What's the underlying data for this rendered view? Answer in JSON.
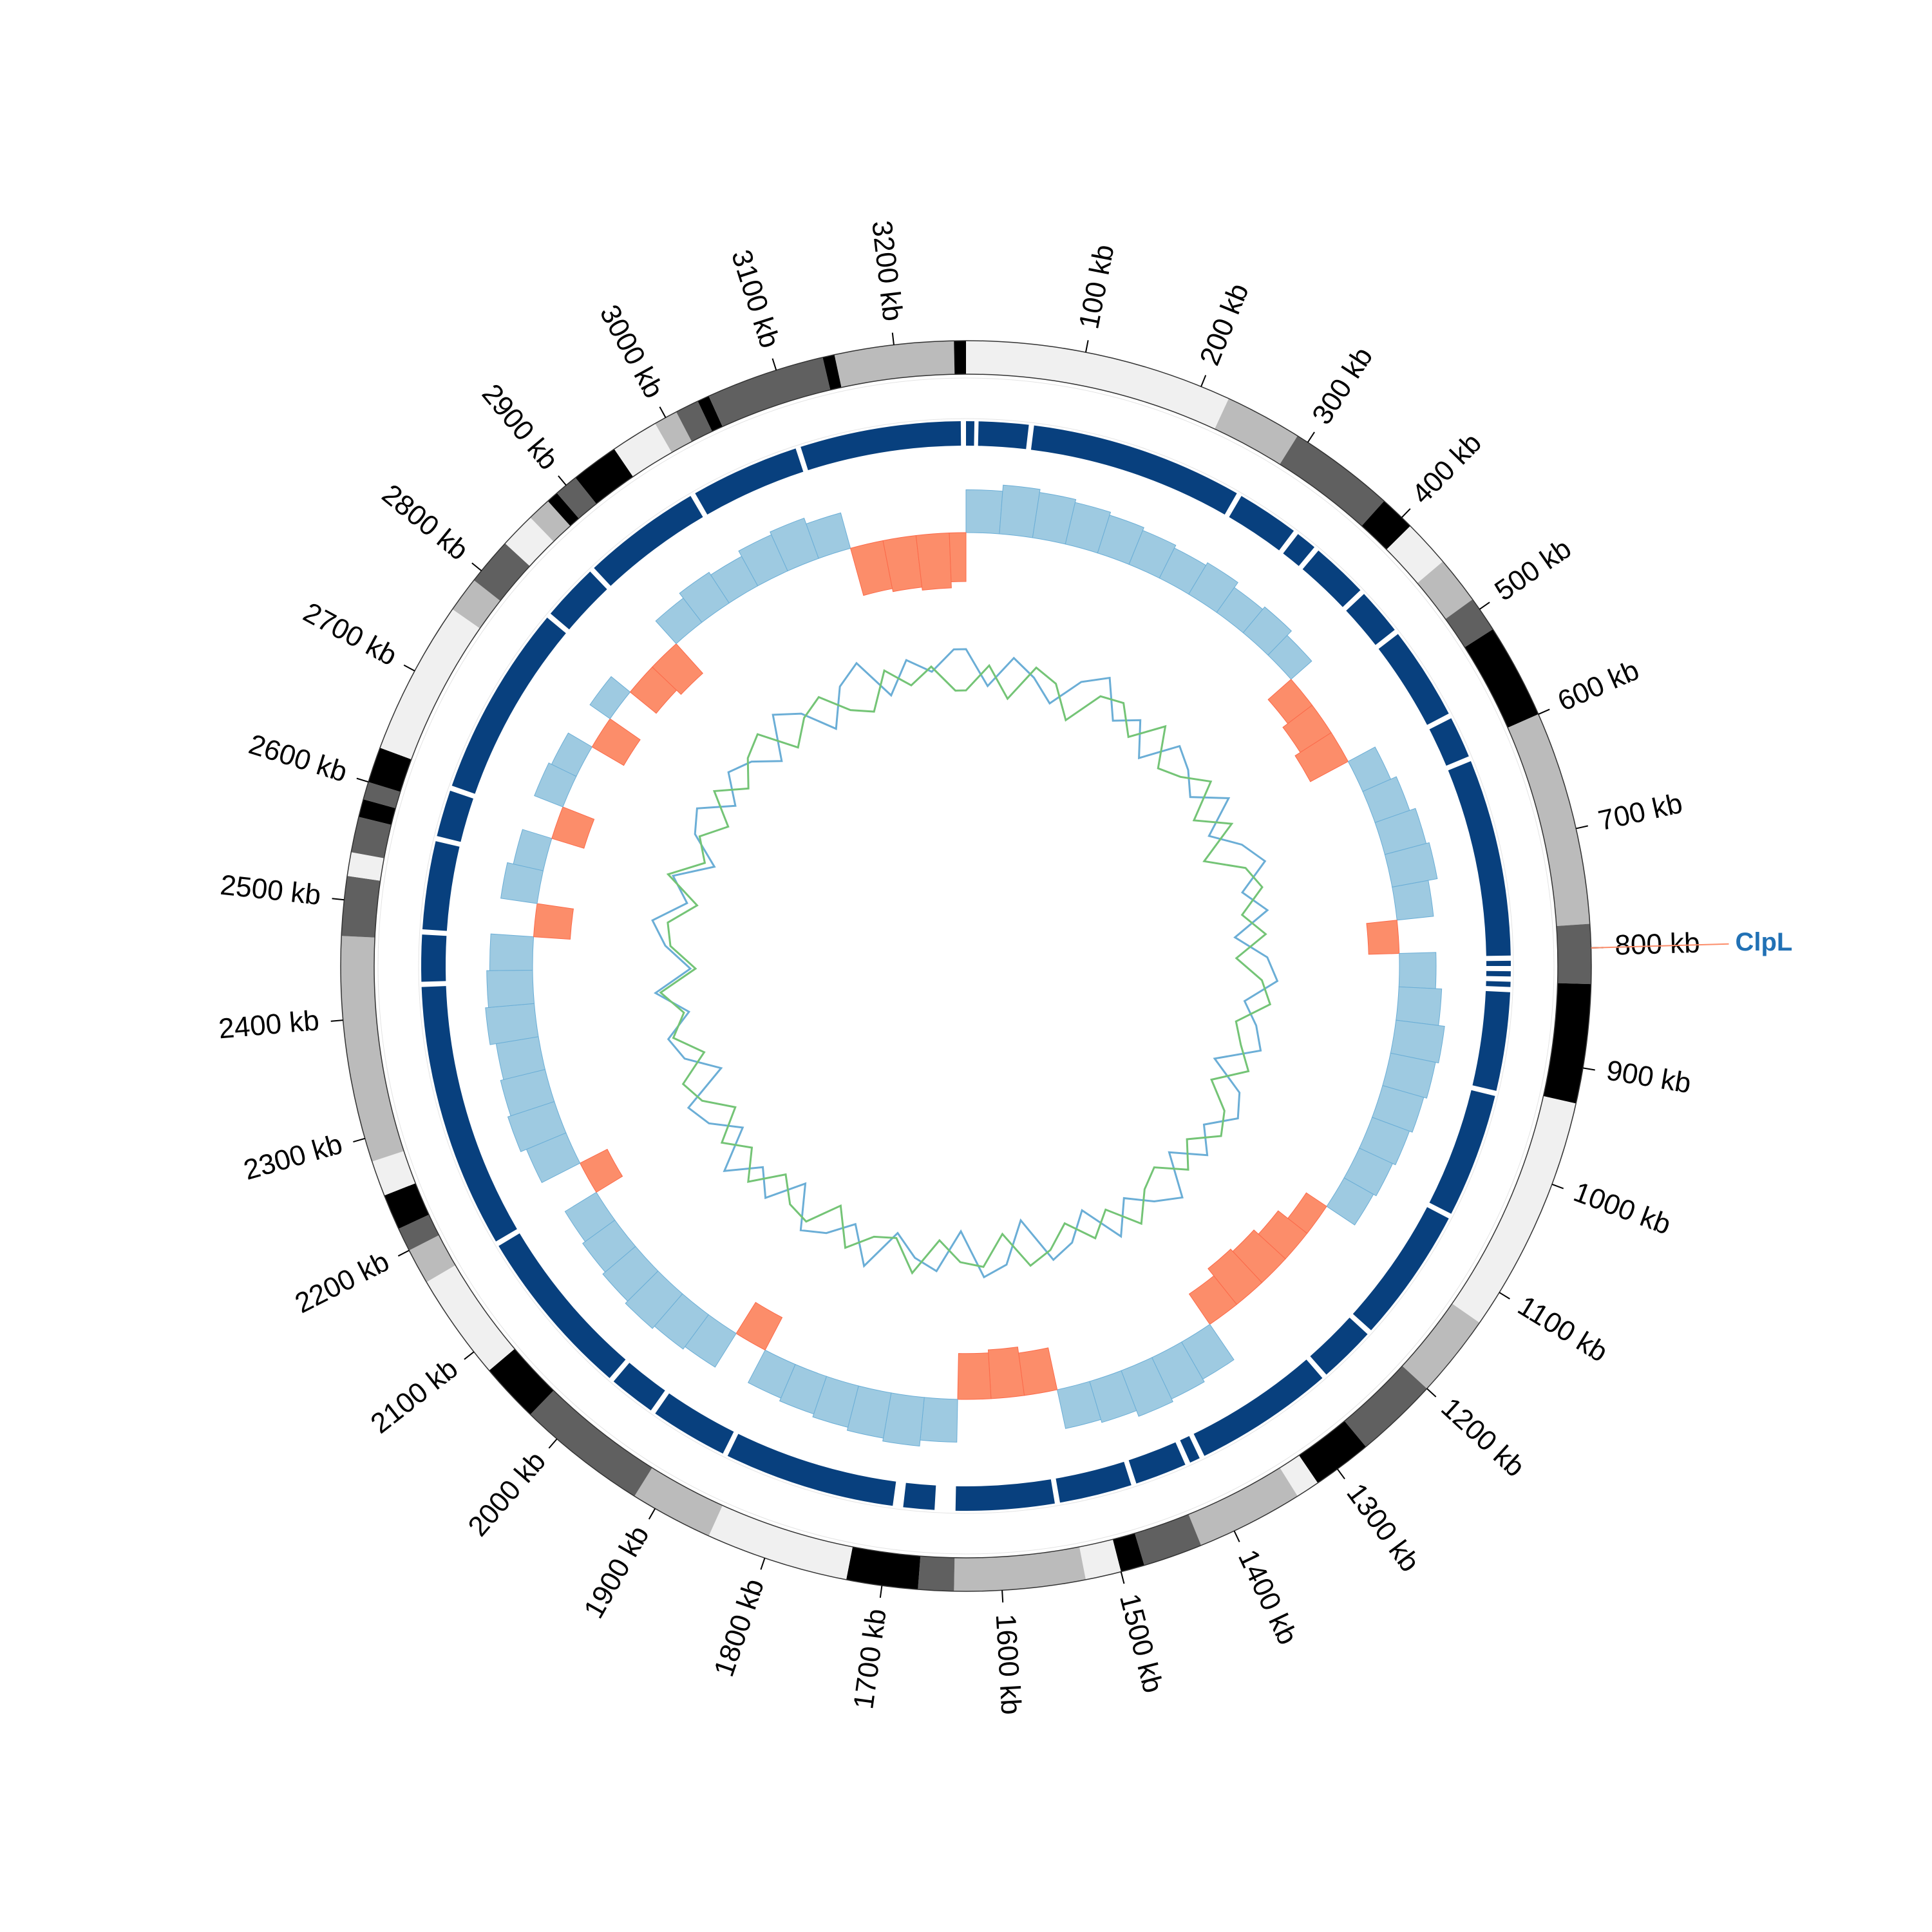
{
  "chart_data": {
    "type": "circos",
    "xlim": [
      0,
      3260
    ],
    "xticks": [
      {
        "value": 100,
        "label": "100 kb"
      },
      {
        "value": 200,
        "label": "200 kb"
      },
      {
        "value": 300,
        "label": "300 kb"
      },
      {
        "value": 400,
        "label": "400 kb"
      },
      {
        "value": 500,
        "label": "500 kb"
      },
      {
        "value": 600,
        "label": "600 kb"
      },
      {
        "value": 700,
        "label": "700 kb"
      },
      {
        "value": 800,
        "label": "800 kb"
      },
      {
        "value": 900,
        "label": "900 kb"
      },
      {
        "value": 1000,
        "label": "1000 kb"
      },
      {
        "value": 1100,
        "label": "1100 kb"
      },
      {
        "value": 1200,
        "label": "1200 kb"
      },
      {
        "value": 1300,
        "label": "1300 kb"
      },
      {
        "value": 1400,
        "label": "1400 kb"
      },
      {
        "value": 1500,
        "label": "1500 kb"
      },
      {
        "value": 1600,
        "label": "1600 kb"
      },
      {
        "value": 1700,
        "label": "1700 kb"
      },
      {
        "value": 1800,
        "label": "1800 kb"
      },
      {
        "value": 1900,
        "label": "1900 kb"
      },
      {
        "value": 2000,
        "label": "2000 kb"
      },
      {
        "value": 2100,
        "label": "2100 kb"
      },
      {
        "value": 2200,
        "label": "2200 kb"
      },
      {
        "value": 2300,
        "label": "2300 kb"
      },
      {
        "value": 2400,
        "label": "2400 kb"
      },
      {
        "value": 2500,
        "label": "2500 kb"
      },
      {
        "value": 2600,
        "label": "2600 kb"
      },
      {
        "value": 2700,
        "label": "2700 kb"
      },
      {
        "value": 2800,
        "label": "2800 kb"
      },
      {
        "value": 2900,
        "label": "2900 kb"
      },
      {
        "value": 3000,
        "label": "3000 kb"
      },
      {
        "value": 3100,
        "label": "3100 kb"
      },
      {
        "value": 3200,
        "label": "3200 kb"
      }
    ],
    "bands": [
      {
        "start": 0,
        "end": 225,
        "color": "#f0f0f0"
      },
      {
        "start": 225,
        "end": 290,
        "color": "#bbbbbb"
      },
      {
        "start": 290,
        "end": 380,
        "color": "#606060"
      },
      {
        "start": 380,
        "end": 410,
        "color": "#000000"
      },
      {
        "start": 410,
        "end": 450,
        "color": "#f0f0f0"
      },
      {
        "start": 450,
        "end": 490,
        "color": "#bbbbbb"
      },
      {
        "start": 490,
        "end": 520,
        "color": "#606060"
      },
      {
        "start": 520,
        "end": 600,
        "color": "#000000"
      },
      {
        "start": 600,
        "end": 780,
        "color": "#bbbbbb"
      },
      {
        "start": 780,
        "end": 830,
        "color": "#606060"
      },
      {
        "start": 830,
        "end": 930,
        "color": "#000000"
      },
      {
        "start": 930,
        "end": 1130,
        "color": "#f0f0f0"
      },
      {
        "start": 1130,
        "end": 1200,
        "color": "#bbbbbb"
      },
      {
        "start": 1200,
        "end": 1270,
        "color": "#606060"
      },
      {
        "start": 1270,
        "end": 1320,
        "color": "#000000"
      },
      {
        "start": 1320,
        "end": 1340,
        "color": "#f0f0f0"
      },
      {
        "start": 1340,
        "end": 1430,
        "color": "#bbbbbb"
      },
      {
        "start": 1430,
        "end": 1480,
        "color": "#606060"
      },
      {
        "start": 1480,
        "end": 1500,
        "color": "#000000"
      },
      {
        "start": 1500,
        "end": 1530,
        "color": "#f0f0f0"
      },
      {
        "start": 1530,
        "end": 1640,
        "color": "#bbbbbb"
      },
      {
        "start": 1640,
        "end": 1670,
        "color": "#606060"
      },
      {
        "start": 1670,
        "end": 1730,
        "color": "#000000"
      },
      {
        "start": 1730,
        "end": 1850,
        "color": "#f0f0f0"
      },
      {
        "start": 1850,
        "end": 1920,
        "color": "#bbbbbb"
      },
      {
        "start": 1920,
        "end": 2030,
        "color": "#606060"
      },
      {
        "start": 2030,
        "end": 2080,
        "color": "#000000"
      },
      {
        "start": 2080,
        "end": 2170,
        "color": "#f0f0f0"
      },
      {
        "start": 2170,
        "end": 2200,
        "color": "#bbbbbb"
      },
      {
        "start": 2200,
        "end": 2220,
        "color": "#606060"
      },
      {
        "start": 2220,
        "end": 2250,
        "color": "#000000"
      },
      {
        "start": 2250,
        "end": 2280,
        "color": "#f0f0f0"
      },
      {
        "start": 2280,
        "end": 2470,
        "color": "#bbbbbb"
      },
      {
        "start": 2470,
        "end": 2520,
        "color": "#606060"
      },
      {
        "start": 2520,
        "end": 2540,
        "color": "#f0f0f0"
      },
      {
        "start": 2540,
        "end": 2570,
        "color": "#606060"
      },
      {
        "start": 2570,
        "end": 2585,
        "color": "#000000"
      },
      {
        "start": 2585,
        "end": 2600,
        "color": "#606060"
      },
      {
        "start": 2600,
        "end": 2630,
        "color": "#000000"
      },
      {
        "start": 2630,
        "end": 2760,
        "color": "#f0f0f0"
      },
      {
        "start": 2760,
        "end": 2790,
        "color": "#bbbbbb"
      },
      {
        "start": 2790,
        "end": 2830,
        "color": "#606060"
      },
      {
        "start": 2830,
        "end": 2860,
        "color": "#f0f0f0"
      },
      {
        "start": 2860,
        "end": 2880,
        "color": "#bbbbbb"
      },
      {
        "start": 2880,
        "end": 2890,
        "color": "#000000"
      },
      {
        "start": 2890,
        "end": 2910,
        "color": "#606060"
      },
      {
        "start": 2910,
        "end": 2950,
        "color": "#000000"
      },
      {
        "start": 2950,
        "end": 2990,
        "color": "#f0f0f0"
      },
      {
        "start": 2990,
        "end": 3010,
        "color": "#bbbbbb"
      },
      {
        "start": 3010,
        "end": 3030,
        "color": "#606060"
      },
      {
        "start": 3030,
        "end": 3040,
        "color": "#000000"
      },
      {
        "start": 3040,
        "end": 3140,
        "color": "#606060"
      },
      {
        "start": 3140,
        "end": 3150,
        "color": "#000000"
      },
      {
        "start": 3150,
        "end": 3250,
        "color": "#bbbbbb"
      },
      {
        "start": 3250,
        "end": 3260,
        "color": "#000000"
      }
    ],
    "blocks_color": "#08407e",
    "blocks": [
      {
        "start": 0,
        "end": 8
      },
      {
        "start": 12,
        "end": 60
      },
      {
        "start": 65,
        "end": 270
      },
      {
        "start": 275,
        "end": 335
      },
      {
        "start": 340,
        "end": 360
      },
      {
        "start": 365,
        "end": 420
      },
      {
        "start": 425,
        "end": 470
      },
      {
        "start": 475,
        "end": 565
      },
      {
        "start": 570,
        "end": 610
      },
      {
        "start": 615,
        "end": 805
      },
      {
        "start": 810,
        "end": 815
      },
      {
        "start": 820,
        "end": 825
      },
      {
        "start": 830,
        "end": 835
      },
      {
        "start": 840,
        "end": 935
      },
      {
        "start": 940,
        "end": 1060
      },
      {
        "start": 1065,
        "end": 1195
      },
      {
        "start": 1200,
        "end": 1255
      },
      {
        "start": 1260,
        "end": 1395
      },
      {
        "start": 1400,
        "end": 1410
      },
      {
        "start": 1415,
        "end": 1465
      },
      {
        "start": 1470,
        "end": 1540
      },
      {
        "start": 1545,
        "end": 1640
      },
      {
        "start": 1660,
        "end": 1690
      },
      {
        "start": 1700,
        "end": 1865
      },
      {
        "start": 1870,
        "end": 1945
      },
      {
        "start": 1950,
        "end": 1995
      },
      {
        "start": 2000,
        "end": 2165
      },
      {
        "start": 2170,
        "end": 2425
      },
      {
        "start": 2430,
        "end": 2475
      },
      {
        "start": 2480,
        "end": 2565
      },
      {
        "start": 2570,
        "end": 2615
      },
      {
        "start": 2620,
        "end": 2805
      },
      {
        "start": 2810,
        "end": 2865
      },
      {
        "start": 2870,
        "end": 2985
      },
      {
        "start": 2990,
        "end": 3095
      },
      {
        "start": 3100,
        "end": 3255
      }
    ],
    "x": [
      0,
      40,
      80,
      120,
      160,
      200,
      240,
      280,
      320,
      360,
      400,
      440,
      480,
      520,
      560,
      600,
      640,
      680,
      720,
      760,
      800,
      840,
      880,
      920,
      960,
      1000,
      1040,
      1080,
      1120,
      1160,
      1200,
      1240,
      1280,
      1320,
      1360,
      1400,
      1440,
      1480,
      1520,
      1560,
      1600,
      1640,
      1680,
      1720,
      1760,
      1800,
      1840,
      1880,
      1920,
      1960,
      2000,
      2040,
      2080,
      2120,
      2160,
      2200,
      2240,
      2280,
      2320,
      2360,
      2400,
      2440,
      2480,
      2520,
      2560,
      2600,
      2640,
      2680,
      2720,
      2760,
      2800,
      2840,
      2880,
      2920,
      2960,
      3000,
      3040,
      3080,
      3120,
      3160,
      3200,
      3240
    ],
    "skew": {
      "ylim": [
        -1,
        1
      ],
      "positive_color": "#9ecae1",
      "negative_color": "#fc8d6a",
      "values": [
        0.7,
        0.8,
        0.75,
        0.7,
        0.65,
        0.6,
        0.55,
        0.6,
        0.5,
        0.55,
        0.45,
        -0.5,
        -0.6,
        -0.7,
        0.5,
        0.6,
        0.7,
        0.75,
        0.6,
        -0.5,
        0.6,
        0.7,
        0.8,
        0.75,
        0.7,
        0.65,
        0.6,
        0.55,
        -0.4,
        -0.6,
        -0.7,
        -0.75,
        -0.6,
        0.7,
        0.75,
        0.8,
        0.7,
        0.65,
        -0.7,
        -0.8,
        -0.75,
        0.7,
        0.8,
        0.75,
        0.7,
        0.65,
        0.6,
        -0.6,
        0.65,
        0.7,
        0.75,
        0.7,
        0.65,
        0.6,
        -0.5,
        0.7,
        0.8,
        0.75,
        0.7,
        0.8,
        0.75,
        0.7,
        -0.6,
        0.6,
        0.5,
        -0.55,
        0.5,
        0.45,
        -0.6,
        0.4,
        -0.55,
        -0.65,
        0.5,
        0.6,
        0.55,
        0.65,
        0.7,
        0.6,
        -0.8,
        -0.85,
        -0.9,
        -0.8
      ]
    },
    "gc": {
      "ylim": [
        -1,
        1
      ],
      "series": [
        {
          "color": "#6baed6",
          "values": [
            0.5,
            -0.2,
            0.4,
            0.1,
            -0.3,
            0.3,
            0.6,
            -0.1,
            0.2,
            -0.4,
            0.3,
            0.1,
            -0.2,
            0.4,
            -0.3,
            0.2,
            0.5,
            -0.1,
            0.3,
            -0.4,
            0.2,
            0.4,
            -0.2,
            0.1,
            0.3,
            -0.5,
            0.2,
            0.4,
            -0.1,
            0.3,
            -0.3,
            0.5,
            0.2,
            -0.2,
            0.4,
            -0.4,
            0.1,
            0.3,
            -0.6,
            0.2,
            0.4,
            -0.5,
            0.3,
            0.1,
            -0.3,
            0.5,
            -0.2,
            0.2,
            0.4,
            -0.4,
            0.3,
            -0.1,
            0.5,
            -0.3,
            0.2,
            0.4,
            -0.5,
            0.1,
            0.3,
            -0.2,
            0.4,
            -0.3,
            0.2,
            0.5,
            -0.1,
            0.3,
            -0.4,
            0.2,
            0.4,
            -0.2,
            0.3,
            0.1,
            -0.3,
            0.5,
            0.2,
            -0.4,
            0.3,
            0.6,
            -0.2,
            0.4,
            0.1,
            0.5
          ]
        },
        {
          "color": "#74c476",
          "values": [
            -0.3,
            0.2,
            -0.4,
            0.3,
            0.1,
            -0.5,
            0.2,
            0.3,
            -0.2,
            0.4,
            -0.3,
            -0.1,
            0.3,
            -0.4,
            0.2,
            -0.6,
            0.1,
            0.3,
            -0.2,
            0.2,
            -0.4,
            0.1,
            0.3,
            -0.3,
            -0.1,
            0.2,
            -0.4,
            0.1,
            0.3,
            -0.2,
            0.2,
            -0.3,
            -0.1,
            0.4,
            -0.2,
            0.2,
            -0.3,
            0.1,
            0.3,
            -0.4,
            0.2,
            0.1,
            -0.3,
            0.4,
            -0.2,
            -0.1,
            0.3,
            -0.4,
            0.2,
            0.1,
            -0.3,
            0.3,
            -0.2,
            0.2,
            -0.4,
            0.1,
            0.3,
            -0.3,
            0.2,
            -0.1,
            0.3,
            -0.4,
            0.1,
            0.2,
            -0.3,
            0.4,
            -0.2,
            0.1,
            -0.3,
            0.3,
            -0.2,
            0.2,
            0.4,
            -0.3,
            0.1,
            0.3,
            -0.2,
            -0.4,
            0.3,
            -0.1,
            0.2,
            -0.3
          ]
        }
      ]
    },
    "annotations": [
      {
        "position": 800,
        "label": "ClpL",
        "color": "#2171b5",
        "line_color": "#fc8d6a"
      }
    ]
  }
}
